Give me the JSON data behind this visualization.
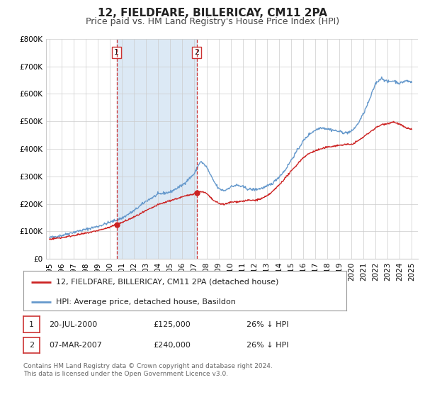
{
  "title": "12, FIELDFARE, BILLERICAY, CM11 2PA",
  "subtitle": "Price paid vs. HM Land Registry's House Price Index (HPI)",
  "ylim": [
    0,
    800000
  ],
  "yticks": [
    0,
    100000,
    200000,
    300000,
    400000,
    500000,
    600000,
    700000,
    800000
  ],
  "ytick_labels": [
    "£0",
    "£100K",
    "£200K",
    "£300K",
    "£400K",
    "£500K",
    "£600K",
    "£700K",
    "£800K"
  ],
  "xlim_start": 1994.7,
  "xlim_end": 2025.5,
  "xtick_years": [
    1995,
    1996,
    1997,
    1998,
    1999,
    2000,
    2001,
    2002,
    2003,
    2004,
    2005,
    2006,
    2007,
    2008,
    2009,
    2010,
    2011,
    2012,
    2013,
    2014,
    2015,
    2016,
    2017,
    2018,
    2019,
    2020,
    2021,
    2022,
    2023,
    2024,
    2025
  ],
  "sale1_x": 2000.55,
  "sale1_y": 125000,
  "sale2_x": 2007.18,
  "sale2_y": 240000,
  "sale1_date": "20-JUL-2000",
  "sale1_price": "£125,000",
  "sale1_hpi": "26% ↓ HPI",
  "sale2_date": "07-MAR-2007",
  "sale2_price": "£240,000",
  "sale2_hpi": "26% ↓ HPI",
  "shaded_region_color": "#dce9f5",
  "vline_color": "#cc3333",
  "red_line_color": "#cc2222",
  "blue_line_color": "#6699cc",
  "dot_color": "#cc2222",
  "legend1_label": "12, FIELDFARE, BILLERICAY, CM11 2PA (detached house)",
  "legend2_label": "HPI: Average price, detached house, Basildon",
  "footer_text": "Contains HM Land Registry data © Crown copyright and database right 2024.\nThis data is licensed under the Open Government Licence v3.0.",
  "background_color": "#ffffff",
  "grid_color": "#cccccc",
  "title_fontsize": 11,
  "subtitle_fontsize": 9,
  "tick_fontsize": 7.5,
  "legend_fontsize": 8,
  "footer_fontsize": 6.5
}
